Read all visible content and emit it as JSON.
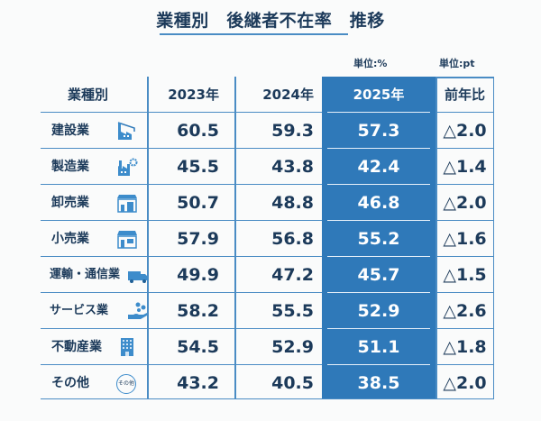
{
  "title": "業種別　後継者不在率　推移",
  "units": {
    "pct": "単位:%",
    "pt": "単位:pt"
  },
  "colors": {
    "accent": "#2f79b9",
    "text": "#1c3a5a",
    "border": "#4a8cc4"
  },
  "chart_data": {
    "type": "table",
    "title": "業種別　後継者不在率　推移",
    "columns": [
      "業種別",
      "2023年",
      "2024年",
      "2025年",
      "前年比"
    ],
    "rows": [
      {
        "industry": "建設業",
        "icon": "crane-building-icon",
        "y2023": "60.5",
        "y2024": "59.3",
        "y2025": "57.3",
        "diff": "△2.0"
      },
      {
        "industry": "製造業",
        "icon": "factory-gear-icon",
        "y2023": "45.5",
        "y2024": "43.8",
        "y2025": "42.4",
        "diff": "△1.4"
      },
      {
        "industry": "卸売業",
        "icon": "warehouse-store-icon",
        "y2023": "50.7",
        "y2024": "48.8",
        "y2025": "46.8",
        "diff": "△2.0"
      },
      {
        "industry": "小売業",
        "icon": "shop-icon",
        "y2023": "57.9",
        "y2024": "56.8",
        "y2025": "55.2",
        "diff": "△1.6"
      },
      {
        "industry": "運輸・通信業",
        "icon": "truck-icon",
        "y2023": "49.9",
        "y2024": "47.2",
        "y2025": "45.7",
        "diff": "△1.5"
      },
      {
        "industry": "サービス業",
        "icon": "hand-service-icon",
        "y2023": "58.2",
        "y2024": "55.5",
        "y2025": "52.9",
        "diff": "△2.6"
      },
      {
        "industry": "不動産業",
        "icon": "office-building-icon",
        "y2023": "54.5",
        "y2024": "52.9",
        "y2025": "51.1",
        "diff": "△1.8"
      },
      {
        "industry": "その他",
        "icon": "other-badge-icon",
        "icon_text": "その他",
        "y2023": "43.2",
        "y2024": "40.5",
        "y2025": "38.5",
        "diff": "△2.0"
      }
    ]
  }
}
